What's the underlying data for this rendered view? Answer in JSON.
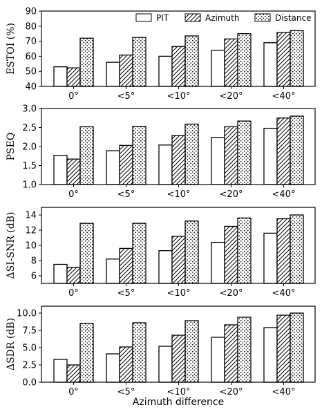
{
  "chart_data": [
    {
      "type": "bar",
      "ylabel": "ESTOI (%)",
      "xlabel": "",
      "ylim": [
        40,
        90
      ],
      "yticks": [
        40,
        50,
        60,
        70,
        80,
        90
      ],
      "ytick_labels": [
        "40",
        "50",
        "60",
        "70",
        "80",
        "90"
      ],
      "legend": "top-right",
      "categories": [
        "0°",
        "<5°",
        "<10°",
        "<20°",
        "<40°"
      ],
      "series": [
        {
          "name": "PIT",
          "values": [
            53,
            56,
            60,
            64,
            69
          ]
        },
        {
          "name": "Azimuth",
          "values": [
            52.3,
            60.8,
            66.5,
            71.5,
            75.8
          ]
        },
        {
          "name": "Distance",
          "values": [
            72,
            72.5,
            73.5,
            75,
            77
          ]
        }
      ]
    },
    {
      "type": "bar",
      "ylabel": "PSEQ",
      "xlabel": "",
      "ylim": [
        1.0,
        3.0
      ],
      "yticks": [
        1.0,
        1.5,
        2.0,
        2.5,
        3.0
      ],
      "ytick_labels": [
        "1.0",
        "1.5",
        "2.0",
        "2.5",
        "3.0"
      ],
      "categories": [
        "0°",
        "<5°",
        "<10°",
        "<20°",
        "<40°"
      ],
      "series": [
        {
          "name": "PIT",
          "values": [
            1.77,
            1.89,
            2.04,
            2.24,
            2.48
          ]
        },
        {
          "name": "Azimuth",
          "values": [
            1.67,
            2.03,
            2.29,
            2.52,
            2.75
          ]
        },
        {
          "name": "Distance",
          "values": [
            2.52,
            2.53,
            2.59,
            2.67,
            2.8
          ]
        }
      ]
    },
    {
      "type": "bar",
      "ylabel": "ΔSI-SNR (dB)",
      "xlabel": "",
      "ylim": [
        5,
        15
      ],
      "yticks": [
        6,
        8,
        10,
        12,
        14
      ],
      "ytick_labels": [
        "6",
        "8",
        "10",
        "12",
        "14"
      ],
      "categories": [
        "0°",
        "<5°",
        "<10°",
        "<20°",
        "<40°"
      ],
      "series": [
        {
          "name": "PIT",
          "values": [
            7.5,
            8.2,
            9.3,
            10.4,
            11.6
          ]
        },
        {
          "name": "Azimuth",
          "values": [
            7.1,
            9.6,
            11.2,
            12.5,
            13.5
          ]
        },
        {
          "name": "Distance",
          "values": [
            12.9,
            12.9,
            13.2,
            13.6,
            14
          ]
        }
      ]
    },
    {
      "type": "bar",
      "ylabel": "ΔSDR (dB)",
      "xlabel": "Azimuth difference",
      "ylim": [
        0,
        11
      ],
      "yticks": [
        0,
        2.5,
        5,
        7.5,
        10
      ],
      "ytick_labels": [
        "0.0",
        "2.5",
        "5.0",
        "7.5",
        "10.0"
      ],
      "categories": [
        "0°",
        "<5°",
        "<10°",
        "<20°",
        "<40°"
      ],
      "series": [
        {
          "name": "PIT",
          "values": [
            3.3,
            4.1,
            5.2,
            6.5,
            7.9
          ]
        },
        {
          "name": "Azimuth",
          "values": [
            2.5,
            5.1,
            6.8,
            8.3,
            9.7
          ]
        },
        {
          "name": "Distance",
          "values": [
            8.5,
            8.6,
            8.9,
            9.4,
            10
          ]
        }
      ]
    }
  ]
}
